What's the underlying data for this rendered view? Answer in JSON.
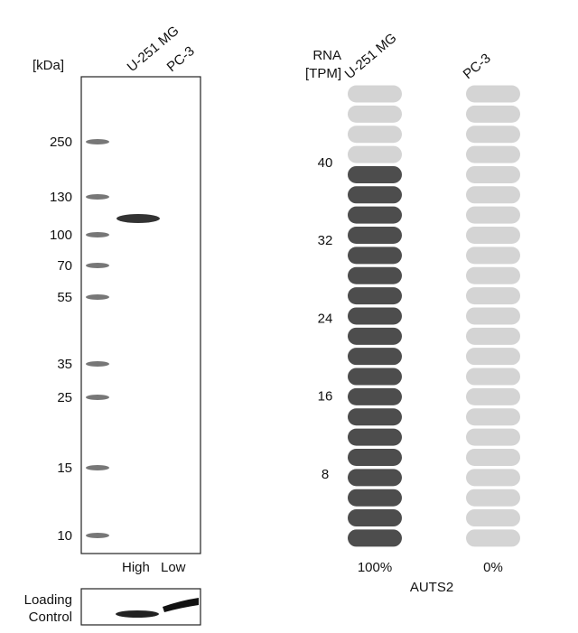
{
  "blot": {
    "unit_label": "[kDa]",
    "lanes": [
      "U-251 MG",
      "PC-3"
    ],
    "markers": [
      250,
      130,
      100,
      70,
      55,
      35,
      25,
      15,
      10
    ],
    "levels": [
      "High",
      "Low"
    ],
    "loading_control": [
      "Loading",
      "Control"
    ]
  },
  "rna": {
    "axis_label": [
      "RNA",
      "[TPM]"
    ],
    "ticks": [
      8,
      16,
      24,
      32,
      40
    ],
    "gene": "AUTS2",
    "samples": [
      {
        "name": "U-251 MG",
        "tpm": 40,
        "label": "100%"
      },
      {
        "name": "PC-3",
        "tpm": 0,
        "label": "0%"
      }
    ]
  }
}
